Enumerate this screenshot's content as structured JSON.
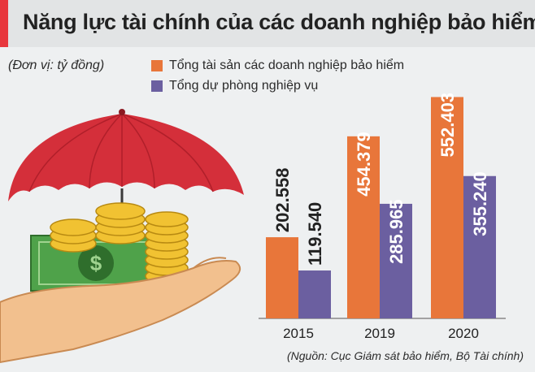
{
  "header": {
    "title": "Năng lực tài chính của các doanh nghiệp bảo hiểm",
    "accent_color": "#e8373d"
  },
  "unit": "(Đơn vị: tỷ đồng)",
  "source": "(Nguồn: Cục Giám sát bảo hiểm, Bộ Tài chính)",
  "illustration": {
    "icon": "umbrella-hand-coins-icon"
  },
  "chart_data": {
    "type": "bar",
    "categories": [
      "2015",
      "2019",
      "2020"
    ],
    "series": [
      {
        "name": "Tổng tài sản các doanh nghiệp bảo hiểm",
        "color": "#e8763a",
        "values": [
          202558,
          454379,
          552403
        ],
        "labels": [
          "202.558",
          "454.379",
          "552.403"
        ]
      },
      {
        "name": "Tổng dự phòng nghiệp vụ",
        "color": "#6b5fa0",
        "values": [
          119540,
          285965,
          355240
        ],
        "labels": [
          "119.540",
          "285.965",
          "355.240"
        ]
      }
    ],
    "ylim": [
      0,
      600000
    ],
    "grid": false,
    "legend": "top"
  }
}
